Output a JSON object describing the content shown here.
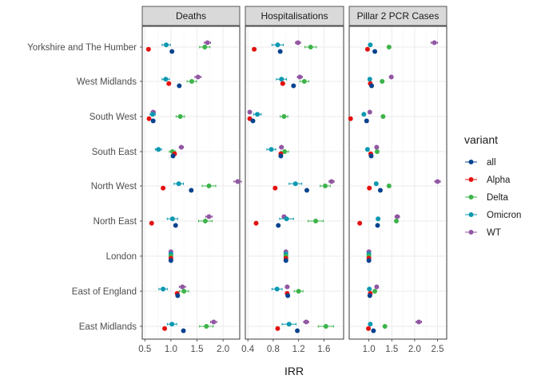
{
  "chart_data": {
    "type": "scatter",
    "xlabel": "IRR",
    "ylabel": "",
    "grid": true,
    "legend": {
      "title": "variant",
      "placement": "right",
      "entries": [
        "all",
        "Alpha",
        "Delta",
        "Omicron",
        "WT"
      ]
    },
    "colors": {
      "all": "#08438f",
      "Alpha": "#e3110f",
      "Delta": "#3db34a",
      "Omicron": "#0a98b0",
      "WT": "#9257a3"
    },
    "regions": [
      "Yorkshire and The Humber",
      "West Midlands",
      "South West",
      "South East",
      "North West",
      "North East",
      "London",
      "East of England",
      "East Midlands"
    ],
    "panels": [
      {
        "title": "Deaths",
        "xlim": [
          0.45,
          2.32
        ],
        "xticks": [
          0.5,
          1.0,
          1.5,
          2.0
        ],
        "xtick_labels": [
          "0.5",
          "1.0",
          "1.5",
          "2.0"
        ],
        "series": [
          {
            "name": "WT",
            "values": [
              1.7,
              1.52,
              0.66,
              1.2,
              2.28,
              1.73,
              1.0,
              1.22,
              1.82
            ],
            "ci": [
              [
                1.64,
                1.76
              ],
              [
                1.46,
                1.58
              ],
              [
                0.62,
                0.7
              ],
              [
                1.16,
                1.24
              ],
              [
                2.21,
                2.35
              ],
              [
                1.67,
                1.79
              ],
              [
                1.0,
                1.0
              ],
              [
                1.16,
                1.28
              ],
              [
                1.76,
                1.88
              ]
            ]
          },
          {
            "name": "Omicron",
            "values": [
              0.91,
              0.9,
              0.65,
              0.76,
              1.15,
              1.03,
              1.0,
              0.85,
              1.02
            ],
            "ci": [
              [
                0.83,
                0.99
              ],
              [
                0.83,
                0.97
              ],
              [
                0.6,
                0.7
              ],
              [
                0.7,
                0.82
              ],
              [
                1.06,
                1.24
              ],
              [
                0.93,
                1.13
              ],
              [
                1.0,
                1.0
              ],
              [
                0.77,
                0.93
              ],
              [
                0.93,
                1.11
              ]
            ]
          },
          {
            "name": "Delta",
            "values": [
              1.65,
              1.4,
              1.18,
              1.03,
              1.73,
              1.66,
              1.0,
              1.25,
              1.68
            ],
            "ci": [
              [
                1.55,
                1.75
              ],
              [
                1.31,
                1.49
              ],
              [
                1.1,
                1.26
              ],
              [
                0.97,
                1.09
              ],
              [
                1.6,
                1.86
              ],
              [
                1.53,
                1.79
              ],
              [
                1.0,
                1.0
              ],
              [
                1.16,
                1.34
              ],
              [
                1.55,
                1.81
              ]
            ]
          },
          {
            "name": "Alpha",
            "values": [
              0.57,
              0.96,
              0.58,
              1.07,
              0.85,
              0.63,
              1.0,
              1.12,
              0.88
            ],
            "ci": [
              [
                0.55,
                0.59
              ],
              [
                0.93,
                0.99
              ],
              [
                0.56,
                0.6
              ],
              [
                1.04,
                1.1
              ],
              [
                0.82,
                0.88
              ],
              [
                0.61,
                0.65
              ],
              [
                1.0,
                1.0
              ],
              [
                1.09,
                1.15
              ],
              [
                0.85,
                0.91
              ]
            ]
          },
          {
            "name": "all",
            "values": [
              1.02,
              1.16,
              0.66,
              1.04,
              1.39,
              1.09,
              1.0,
              1.13,
              1.24
            ],
            "ci": [
              [
                1.0,
                1.04
              ],
              [
                1.14,
                1.18
              ],
              [
                0.64,
                0.68
              ],
              [
                1.02,
                1.06
              ],
              [
                1.37,
                1.41
              ],
              [
                1.07,
                1.11
              ],
              [
                1.0,
                1.0
              ],
              [
                1.11,
                1.15
              ],
              [
                1.22,
                1.26
              ]
            ]
          }
        ]
      },
      {
        "title": "Hospitalisations",
        "xlim": [
          0.36,
          1.91
        ],
        "xticks": [
          0.4,
          0.8,
          1.2,
          1.6
        ],
        "xtick_labels": [
          "0.4",
          "0.8",
          "1.2",
          "1.6"
        ],
        "series": [
          {
            "name": "WT",
            "values": [
              1.19,
              1.22,
              0.43,
              0.93,
              1.72,
              0.97,
              1.0,
              1.02,
              1.32
            ],
            "ci": [
              [
                1.15,
                1.23
              ],
              [
                1.18,
                1.26
              ],
              [
                0.41,
                0.45
              ],
              [
                0.9,
                0.96
              ],
              [
                1.68,
                1.76
              ],
              [
                0.94,
                1.0
              ],
              [
                1.0,
                1.0
              ],
              [
                0.99,
                1.05
              ],
              [
                1.28,
                1.36
              ]
            ]
          },
          {
            "name": "Omicron",
            "values": [
              0.87,
              0.93,
              0.55,
              0.77,
              1.15,
              1.01,
              1.0,
              0.86,
              1.05
            ],
            "ci": [
              [
                0.78,
                0.96
              ],
              [
                0.85,
                1.01
              ],
              [
                0.49,
                0.61
              ],
              [
                0.7,
                0.84
              ],
              [
                1.05,
                1.25
              ],
              [
                0.9,
                1.12
              ],
              [
                1.0,
                1.0
              ],
              [
                0.78,
                0.94
              ],
              [
                0.94,
                1.16
              ]
            ]
          },
          {
            "name": "Delta",
            "values": [
              1.39,
              1.29,
              0.97,
              0.98,
              1.62,
              1.47,
              1.0,
              1.2,
              1.63
            ],
            "ci": [
              [
                1.3,
                1.48
              ],
              [
                1.22,
                1.36
              ],
              [
                0.91,
                1.03
              ],
              [
                0.92,
                1.04
              ],
              [
                1.54,
                1.7
              ],
              [
                1.35,
                1.59
              ],
              [
                1.0,
                1.0
              ],
              [
                1.13,
                1.27
              ],
              [
                1.51,
                1.75
              ]
            ]
          },
          {
            "name": "Alpha",
            "values": [
              0.5,
              0.95,
              0.43,
              0.92,
              0.83,
              0.53,
              1.0,
              1.02,
              0.87
            ],
            "ci": [
              [
                0.48,
                0.52
              ],
              [
                0.92,
                0.98
              ],
              [
                0.41,
                0.45
              ],
              [
                0.9,
                0.94
              ],
              [
                0.81,
                0.85
              ],
              [
                0.51,
                0.55
              ],
              [
                1.0,
                1.0
              ],
              [
                1.0,
                1.04
              ],
              [
                0.85,
                0.89
              ]
            ]
          },
          {
            "name": "all",
            "values": [
              0.91,
              1.12,
              0.48,
              0.92,
              1.33,
              0.88,
              1.0,
              1.03,
              1.18
            ],
            "ci": [
              [
                0.89,
                0.93
              ],
              [
                1.1,
                1.14
              ],
              [
                0.46,
                0.5
              ],
              [
                0.9,
                0.94
              ],
              [
                1.31,
                1.35
              ],
              [
                0.86,
                0.9
              ],
              [
                1.0,
                1.0
              ],
              [
                1.01,
                1.05
              ],
              [
                1.16,
                1.2
              ]
            ]
          }
        ]
      },
      {
        "title": "Pillar 2 PCR Cases",
        "xlim": [
          0.57,
          2.7
        ],
        "xticks": [
          1.0,
          1.5,
          2.0,
          2.5
        ],
        "xtick_labels": [
          "1.0",
          "1.5",
          "2.0",
          "2.5"
        ],
        "series": [
          {
            "name": "WT",
            "values": [
              2.43,
              1.49,
              1.02,
              1.17,
              2.5,
              1.62,
              1.0,
              1.17,
              2.09
            ],
            "ci": [
              [
                2.36,
                2.5
              ],
              [
                1.45,
                1.53
              ],
              [
                1.0,
                1.04
              ],
              [
                1.14,
                1.2
              ],
              [
                2.44,
                2.56
              ],
              [
                1.57,
                1.67
              ],
              [
                1.0,
                1.0
              ],
              [
                1.14,
                1.2
              ],
              [
                2.03,
                2.15
              ]
            ]
          },
          {
            "name": "Omicron",
            "values": [
              1.03,
              1.02,
              0.89,
              0.97,
              1.16,
              1.2,
              1.0,
              1.01,
              1.03
            ],
            "ci": [
              [
                1.01,
                1.05
              ],
              [
                1.0,
                1.04
              ],
              [
                0.87,
                0.91
              ],
              [
                0.95,
                0.99
              ],
              [
                1.14,
                1.18
              ],
              [
                1.18,
                1.22
              ],
              [
                1.0,
                1.0
              ],
              [
                0.99,
                1.03
              ],
              [
                1.01,
                1.05
              ]
            ]
          },
          {
            "name": "Delta",
            "values": [
              1.44,
              1.29,
              1.31,
              1.18,
              1.44,
              1.6,
              1.0,
              1.13,
              1.35
            ],
            "ci": [
              [
                1.42,
                1.46
              ],
              [
                1.27,
                1.31
              ],
              [
                1.29,
                1.33
              ],
              [
                1.16,
                1.2
              ],
              [
                1.42,
                1.46
              ],
              [
                1.58,
                1.62
              ],
              [
                1.0,
                1.0
              ],
              [
                1.11,
                1.15
              ],
              [
                1.33,
                1.37
              ]
            ]
          },
          {
            "name": "Alpha",
            "values": [
              0.97,
              1.03,
              0.6,
              1.04,
              1.01,
              0.8,
              1.0,
              1.03,
              0.99
            ],
            "ci": [
              [
                0.95,
                0.99
              ],
              [
                1.01,
                1.05
              ],
              [
                0.58,
                0.62
              ],
              [
                1.02,
                1.06
              ],
              [
                0.99,
                1.03
              ],
              [
                0.78,
                0.82
              ],
              [
                1.0,
                1.0
              ],
              [
                1.01,
                1.05
              ],
              [
                0.97,
                1.01
              ]
            ]
          },
          {
            "name": "all",
            "values": [
              1.13,
              1.06,
              0.95,
              1.05,
              1.25,
              1.19,
              1.0,
              1.02,
              1.1
            ],
            "ci": [
              [
                1.11,
                1.15
              ],
              [
                1.04,
                1.08
              ],
              [
                0.93,
                0.97
              ],
              [
                1.03,
                1.07
              ],
              [
                1.23,
                1.27
              ],
              [
                1.17,
                1.21
              ],
              [
                1.0,
                1.0
              ],
              [
                1.0,
                1.04
              ],
              [
                1.08,
                1.12
              ]
            ]
          }
        ]
      }
    ]
  }
}
